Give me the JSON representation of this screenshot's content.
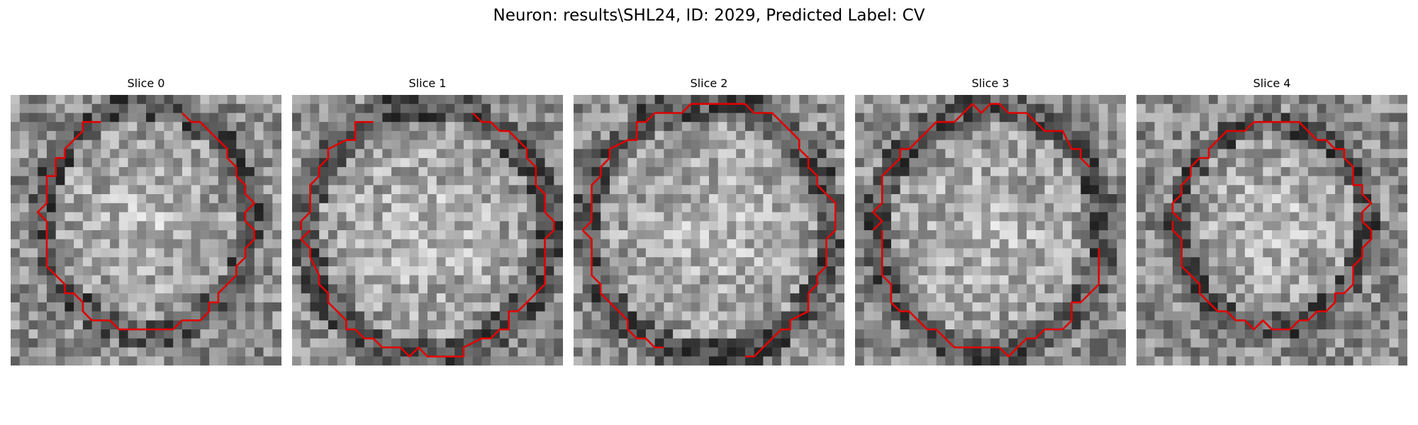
{
  "figure": {
    "title": "Neuron: results\\SHL24, ID: 2029, Predicted Label: CV"
  },
  "colors": {
    "contour": "#e00000",
    "background": "#ffffff"
  },
  "panels": [
    {
      "title": "Slice 0",
      "contour_color": "#e00000"
    },
    {
      "title": "Slice 1",
      "contour_color": "#e00000"
    },
    {
      "title": "Slice 2",
      "contour_color": "#e00000"
    },
    {
      "title": "Slice 3",
      "contour_color": "#e00000"
    },
    {
      "title": "Slice 4",
      "contour_color": "#e00000"
    }
  ]
}
